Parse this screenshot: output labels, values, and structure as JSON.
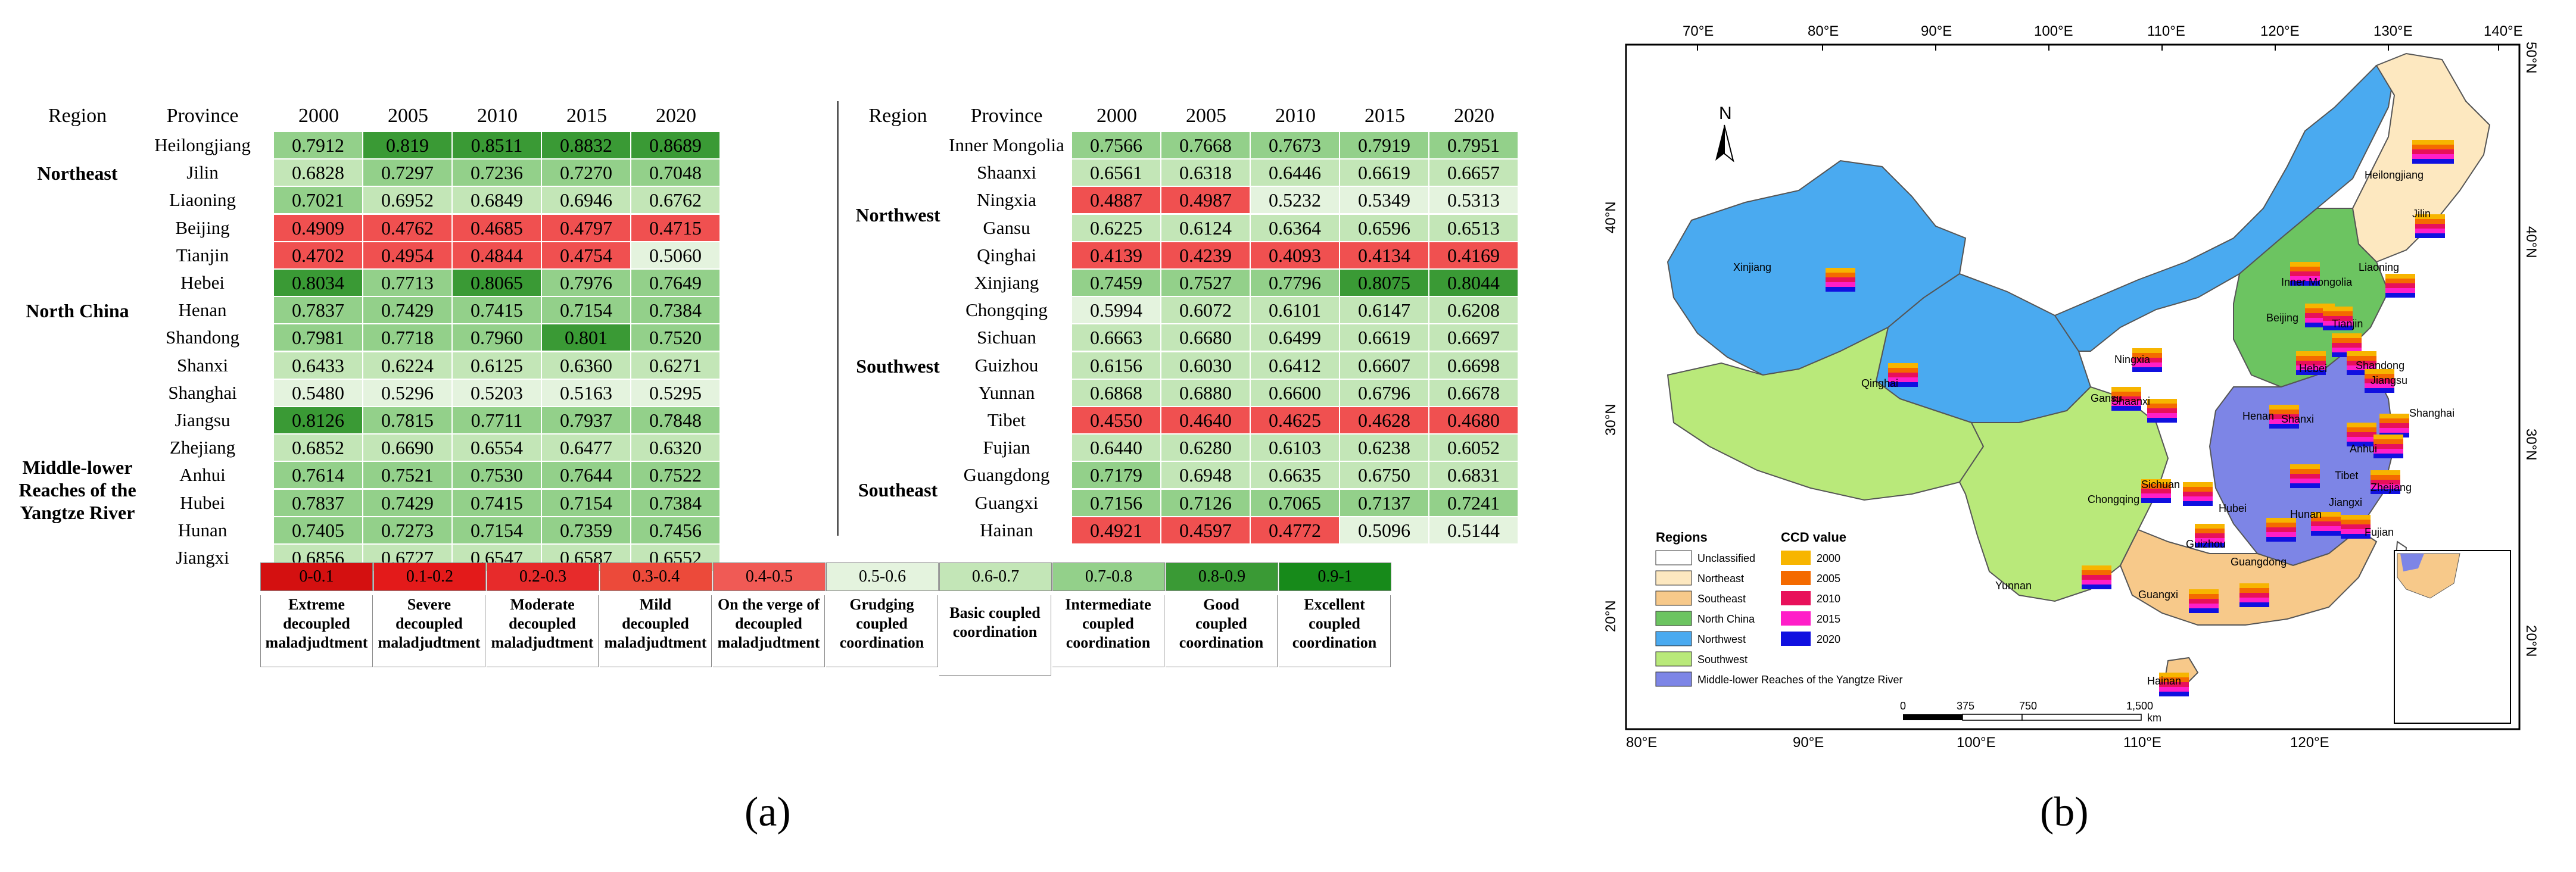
{
  "heatmap": {
    "headers": {
      "region": "Region",
      "province": "Province",
      "years": [
        "2000",
        "2005",
        "2010",
        "2015",
        "2020"
      ]
    },
    "left": {
      "regions": [
        {
          "name": "Northeast",
          "lines": [
            "Northeast"
          ],
          "start": 0,
          "count": 3
        },
        {
          "name": "North China",
          "lines": [
            "North China"
          ],
          "start": 3,
          "count": 7
        },
        {
          "name": "Middle-lower Reaches of the Yangtze River",
          "lines": [
            "Middle-lower",
            "Reaches of the",
            "Yangtze River"
          ],
          "start": 10,
          "count": 6
        }
      ],
      "rows": [
        {
          "province": "Heilongjiang",
          "values": [
            "0.7912",
            "0.819",
            "0.8511",
            "0.8832",
            "0.8689"
          ]
        },
        {
          "province": "Jilin",
          "values": [
            "0.6828",
            "0.7297",
            "0.7236",
            "0.7270",
            "0.7048"
          ]
        },
        {
          "province": "Liaoning",
          "values": [
            "0.7021",
            "0.6952",
            "0.6849",
            "0.6946",
            "0.6762"
          ]
        },
        {
          "province": "Beijing",
          "values": [
            "0.4909",
            "0.4762",
            "0.4685",
            "0.4797",
            "0.4715"
          ]
        },
        {
          "province": "Tianjin",
          "values": [
            "0.4702",
            "0.4954",
            "0.4844",
            "0.4754",
            "0.5060"
          ]
        },
        {
          "province": "Hebei",
          "values": [
            "0.8034",
            "0.7713",
            "0.8065",
            "0.7976",
            "0.7649"
          ]
        },
        {
          "province": "Henan",
          "values": [
            "0.7837",
            "0.7429",
            "0.7415",
            "0.7154",
            "0.7384"
          ]
        },
        {
          "province": "Shandong",
          "values": [
            "0.7981",
            "0.7718",
            "0.7960",
            "0.801",
            "0.7520"
          ]
        },
        {
          "province": "Shanxi",
          "values": [
            "0.6433",
            "0.6224",
            "0.6125",
            "0.6360",
            "0.6271"
          ]
        },
        {
          "province": "Shanghai",
          "values": [
            "0.5480",
            "0.5296",
            "0.5203",
            "0.5163",
            "0.5295"
          ]
        },
        {
          "province": "Jiangsu",
          "values": [
            "0.8126",
            "0.7815",
            "0.7711",
            "0.7937",
            "0.7848"
          ]
        },
        {
          "province": "Zhejiang",
          "values": [
            "0.6852",
            "0.6690",
            "0.6554",
            "0.6477",
            "0.6320"
          ]
        },
        {
          "province": "Anhui",
          "values": [
            "0.7614",
            "0.7521",
            "0.7530",
            "0.7644",
            "0.7522"
          ]
        },
        {
          "province": "Hubei",
          "values": [
            "0.7837",
            "0.7429",
            "0.7415",
            "0.7154",
            "0.7384"
          ]
        },
        {
          "province": "Hunan",
          "values": [
            "0.7405",
            "0.7273",
            "0.7154",
            "0.7359",
            "0.7456"
          ]
        },
        {
          "province": "Jiangxi",
          "values": [
            "0.6856",
            "0.6727",
            "0.6547",
            "0.6587",
            "0.6552"
          ]
        }
      ]
    },
    "right": {
      "regions": [
        {
          "name": "Northwest",
          "lines": [
            "Northwest"
          ],
          "start": 0,
          "count": 6
        },
        {
          "name": "Southwest",
          "lines": [
            "Southwest"
          ],
          "start": 6,
          "count": 5
        },
        {
          "name": "Southeast",
          "lines": [
            "Southeast"
          ],
          "start": 11,
          "count": 4
        }
      ],
      "rows": [
        {
          "province": "Inner Mongolia",
          "values": [
            "0.7566",
            "0.7668",
            "0.7673",
            "0.7919",
            "0.7951"
          ]
        },
        {
          "province": "Shaanxi",
          "values": [
            "0.6561",
            "0.6318",
            "0.6446",
            "0.6619",
            "0.6657"
          ]
        },
        {
          "province": "Ningxia",
          "values": [
            "0.4887",
            "0.4987",
            "0.5232",
            "0.5349",
            "0.5313"
          ]
        },
        {
          "province": "Gansu",
          "values": [
            "0.6225",
            "0.6124",
            "0.6364",
            "0.6596",
            "0.6513"
          ]
        },
        {
          "province": "Qinghai",
          "values": [
            "0.4139",
            "0.4239",
            "0.4093",
            "0.4134",
            "0.4169"
          ]
        },
        {
          "province": "Xinjiang",
          "values": [
            "0.7459",
            "0.7527",
            "0.7796",
            "0.8075",
            "0.8044"
          ]
        },
        {
          "province": "Chongqing",
          "values": [
            "0.5994",
            "0.6072",
            "0.6101",
            "0.6147",
            "0.6208"
          ]
        },
        {
          "province": "Sichuan",
          "values": [
            "0.6663",
            "0.6680",
            "0.6499",
            "0.6619",
            "0.6697"
          ]
        },
        {
          "province": "Guizhou",
          "values": [
            "0.6156",
            "0.6030",
            "0.6412",
            "0.6607",
            "0.6698"
          ]
        },
        {
          "province": "Yunnan",
          "values": [
            "0.6868",
            "0.6880",
            "0.6600",
            "0.6796",
            "0.6678"
          ]
        },
        {
          "province": "Tibet",
          "values": [
            "0.4550",
            "0.4640",
            "0.4625",
            "0.4628",
            "0.4680"
          ]
        },
        {
          "province": "Fujian",
          "values": [
            "0.6440",
            "0.6280",
            "0.6103",
            "0.6238",
            "0.6052"
          ]
        },
        {
          "province": "Guangdong",
          "values": [
            "0.7179",
            "0.6948",
            "0.6635",
            "0.6750",
            "0.6831"
          ]
        },
        {
          "province": "Guangxi",
          "values": [
            "0.7156",
            "0.7126",
            "0.7065",
            "0.7137",
            "0.7241"
          ]
        },
        {
          "province": "Hainan",
          "values": [
            "0.4921",
            "0.4597",
            "0.4772",
            "0.5096",
            "0.5144"
          ]
        }
      ]
    },
    "legend": [
      {
        "range": "0-0.1",
        "lines": [
          "Extreme",
          "decoupled",
          "maladjudtment"
        ],
        "color": "#d41010"
      },
      {
        "range": "0.1-0.2",
        "lines": [
          "Severe",
          "decoupled",
          "maladjudtment"
        ],
        "color": "#e31a1a"
      },
      {
        "range": "0.2-0.3",
        "lines": [
          "Moderate",
          "decoupled",
          "maladjudtment"
        ],
        "color": "#e72b2b"
      },
      {
        "range": "0.3-0.4",
        "lines": [
          "Mild",
          "decoupled",
          "maladjudtment"
        ],
        "color": "#ec4a3a"
      },
      {
        "range": "0.4-0.5",
        "lines": [
          "On the verge of",
          "decoupled",
          "maladjudtment"
        ],
        "color": "#f05a55"
      },
      {
        "range": "0.5-0.6",
        "lines": [
          "Grudging",
          "coupled",
          "coordination"
        ],
        "color": "#e4f3de"
      },
      {
        "range": "0.6-0.7",
        "lines": [
          "Basic coupled",
          "coordination"
        ],
        "color": "#c3e6b7"
      },
      {
        "range": "0.7-0.8",
        "lines": [
          "Intermediate",
          "coupled",
          "coordination"
        ],
        "color": "#93d08a"
      },
      {
        "range": "0.8-0.9",
        "lines": [
          "Good",
          "coupled",
          "coordination"
        ],
        "color": "#3a9a35"
      },
      {
        "range": "0.9-1",
        "lines": [
          "Excellent",
          "coupled",
          "coordination"
        ],
        "color": "#178a1a"
      }
    ]
  },
  "map": {
    "top_ticks": [
      "70°E",
      "80°E",
      "90°E",
      "100°E",
      "110°E",
      "120°E",
      "130°E",
      "140°E"
    ],
    "bottom_ticks": [
      "80°E",
      "90°E",
      "100°E",
      "110°E",
      "120°E"
    ],
    "left_ticks": [
      "40°N",
      "30°N",
      "20°N"
    ],
    "right_ticks": [
      "50°N",
      "40°N",
      "30°N",
      "20°N"
    ],
    "north_label": "N",
    "regions_title": "Regions",
    "regions": [
      {
        "name": "Unclassified",
        "color": "#ffffff"
      },
      {
        "name": "Northeast",
        "color": "#fde8c0"
      },
      {
        "name": "Southeast",
        "color": "#f7c98a"
      },
      {
        "name": "North China",
        "color": "#6cc461"
      },
      {
        "name": "Northwest",
        "color": "#4aaaf0"
      },
      {
        "name": "Southwest",
        "color": "#b9e97a"
      },
      {
        "name": "Middle-lower Reaches of the Yangtze River",
        "color": "#7d85e6"
      }
    ],
    "ccd_title": "CCD value",
    "ccd_series": [
      {
        "name": "2000",
        "color": "#f7b500"
      },
      {
        "name": "2005",
        "color": "#f46a00"
      },
      {
        "name": "2010",
        "color": "#e8105a"
      },
      {
        "name": "2015",
        "color": "#ff1ec8"
      },
      {
        "name": "2020",
        "color": "#1010e0"
      }
    ],
    "scale_labels": [
      "0",
      "375",
      "750",
      "1,500"
    ],
    "scale_unit": "km",
    "province_labels": [
      "Heilongjiang",
      "Jilin",
      "Liaoning",
      "Inner Mongolia",
      "Xinjiang",
      "Beijing",
      "Tianjin",
      "Hebei",
      "Shanxi",
      "Shandong",
      "Ningxia",
      "Qinghai",
      "Gansu",
      "Shaanxi",
      "Henan",
      "Jiangsu",
      "Anhui",
      "Shanghai",
      "Tibet",
      "Sichuan",
      "Chongqing",
      "Hubei",
      "Zhejiang",
      "Jiangxi",
      "Hunan",
      "Guizhou",
      "Fujian",
      "Yunnan",
      "Guangdong",
      "Guangxi",
      "Hainan"
    ]
  },
  "panel_labels": {
    "a": "(a)",
    "b": "(b)"
  },
  "chart_data": {
    "type": "heatmap",
    "title": "",
    "x": [
      "2000",
      "2005",
      "2010",
      "2015",
      "2020"
    ],
    "y": [
      "Heilongjiang",
      "Jilin",
      "Liaoning",
      "Beijing",
      "Tianjin",
      "Hebei",
      "Henan",
      "Shandong",
      "Shanxi",
      "Shanghai",
      "Jiangsu",
      "Zhejiang",
      "Anhui",
      "Hubei",
      "Hunan",
      "Jiangxi",
      "Inner Mongolia",
      "Shaanxi",
      "Ningxia",
      "Gansu",
      "Qinghai",
      "Xinjiang",
      "Chongqing",
      "Sichuan",
      "Guizhou",
      "Yunnan",
      "Tibet",
      "Fujian",
      "Guangdong",
      "Guangxi",
      "Hainan"
    ],
    "values": [
      [
        0.7912,
        0.819,
        0.8511,
        0.8832,
        0.8689
      ],
      [
        0.6828,
        0.7297,
        0.7236,
        0.727,
        0.7048
      ],
      [
        0.7021,
        0.6952,
        0.6849,
        0.6946,
        0.6762
      ],
      [
        0.4909,
        0.4762,
        0.4685,
        0.4797,
        0.4715
      ],
      [
        0.4702,
        0.4954,
        0.4844,
        0.4754,
        0.506
      ],
      [
        0.8034,
        0.7713,
        0.8065,
        0.7976,
        0.7649
      ],
      [
        0.7837,
        0.7429,
        0.7415,
        0.7154,
        0.7384
      ],
      [
        0.7981,
        0.7718,
        0.796,
        0.801,
        0.752
      ],
      [
        0.6433,
        0.6224,
        0.6125,
        0.636,
        0.6271
      ],
      [
        0.548,
        0.5296,
        0.5203,
        0.5163,
        0.5295
      ],
      [
        0.8126,
        0.7815,
        0.7711,
        0.7937,
        0.7848
      ],
      [
        0.6852,
        0.669,
        0.6554,
        0.6477,
        0.632
      ],
      [
        0.7614,
        0.7521,
        0.753,
        0.7644,
        0.7522
      ],
      [
        0.7837,
        0.7429,
        0.7415,
        0.7154,
        0.7384
      ],
      [
        0.7405,
        0.7273,
        0.7154,
        0.7359,
        0.7456
      ],
      [
        0.6856,
        0.6727,
        0.6547,
        0.6587,
        0.6552
      ],
      [
        0.7566,
        0.7668,
        0.7673,
        0.7919,
        0.7951
      ],
      [
        0.6561,
        0.6318,
        0.6446,
        0.6619,
        0.6657
      ],
      [
        0.4887,
        0.4987,
        0.5232,
        0.5349,
        0.5313
      ],
      [
        0.6225,
        0.6124,
        0.6364,
        0.6596,
        0.6513
      ],
      [
        0.4139,
        0.4239,
        0.4093,
        0.4134,
        0.4169
      ],
      [
        0.7459,
        0.7527,
        0.7796,
        0.8075,
        0.8044
      ],
      [
        0.5994,
        0.6072,
        0.6101,
        0.6147,
        0.6208
      ],
      [
        0.6663,
        0.668,
        0.6499,
        0.6619,
        0.6697
      ],
      [
        0.6156,
        0.603,
        0.6412,
        0.6607,
        0.6698
      ],
      [
        0.6868,
        0.688,
        0.66,
        0.6796,
        0.6678
      ],
      [
        0.455,
        0.464,
        0.4625,
        0.4628,
        0.468
      ],
      [
        0.644,
        0.628,
        0.6103,
        0.6238,
        0.6052
      ],
      [
        0.7179,
        0.6948,
        0.6635,
        0.675,
        0.6831
      ],
      [
        0.7156,
        0.7126,
        0.7065,
        0.7137,
        0.7241
      ],
      [
        0.4921,
        0.4597,
        0.4772,
        0.5096,
        0.5144
      ]
    ]
  }
}
